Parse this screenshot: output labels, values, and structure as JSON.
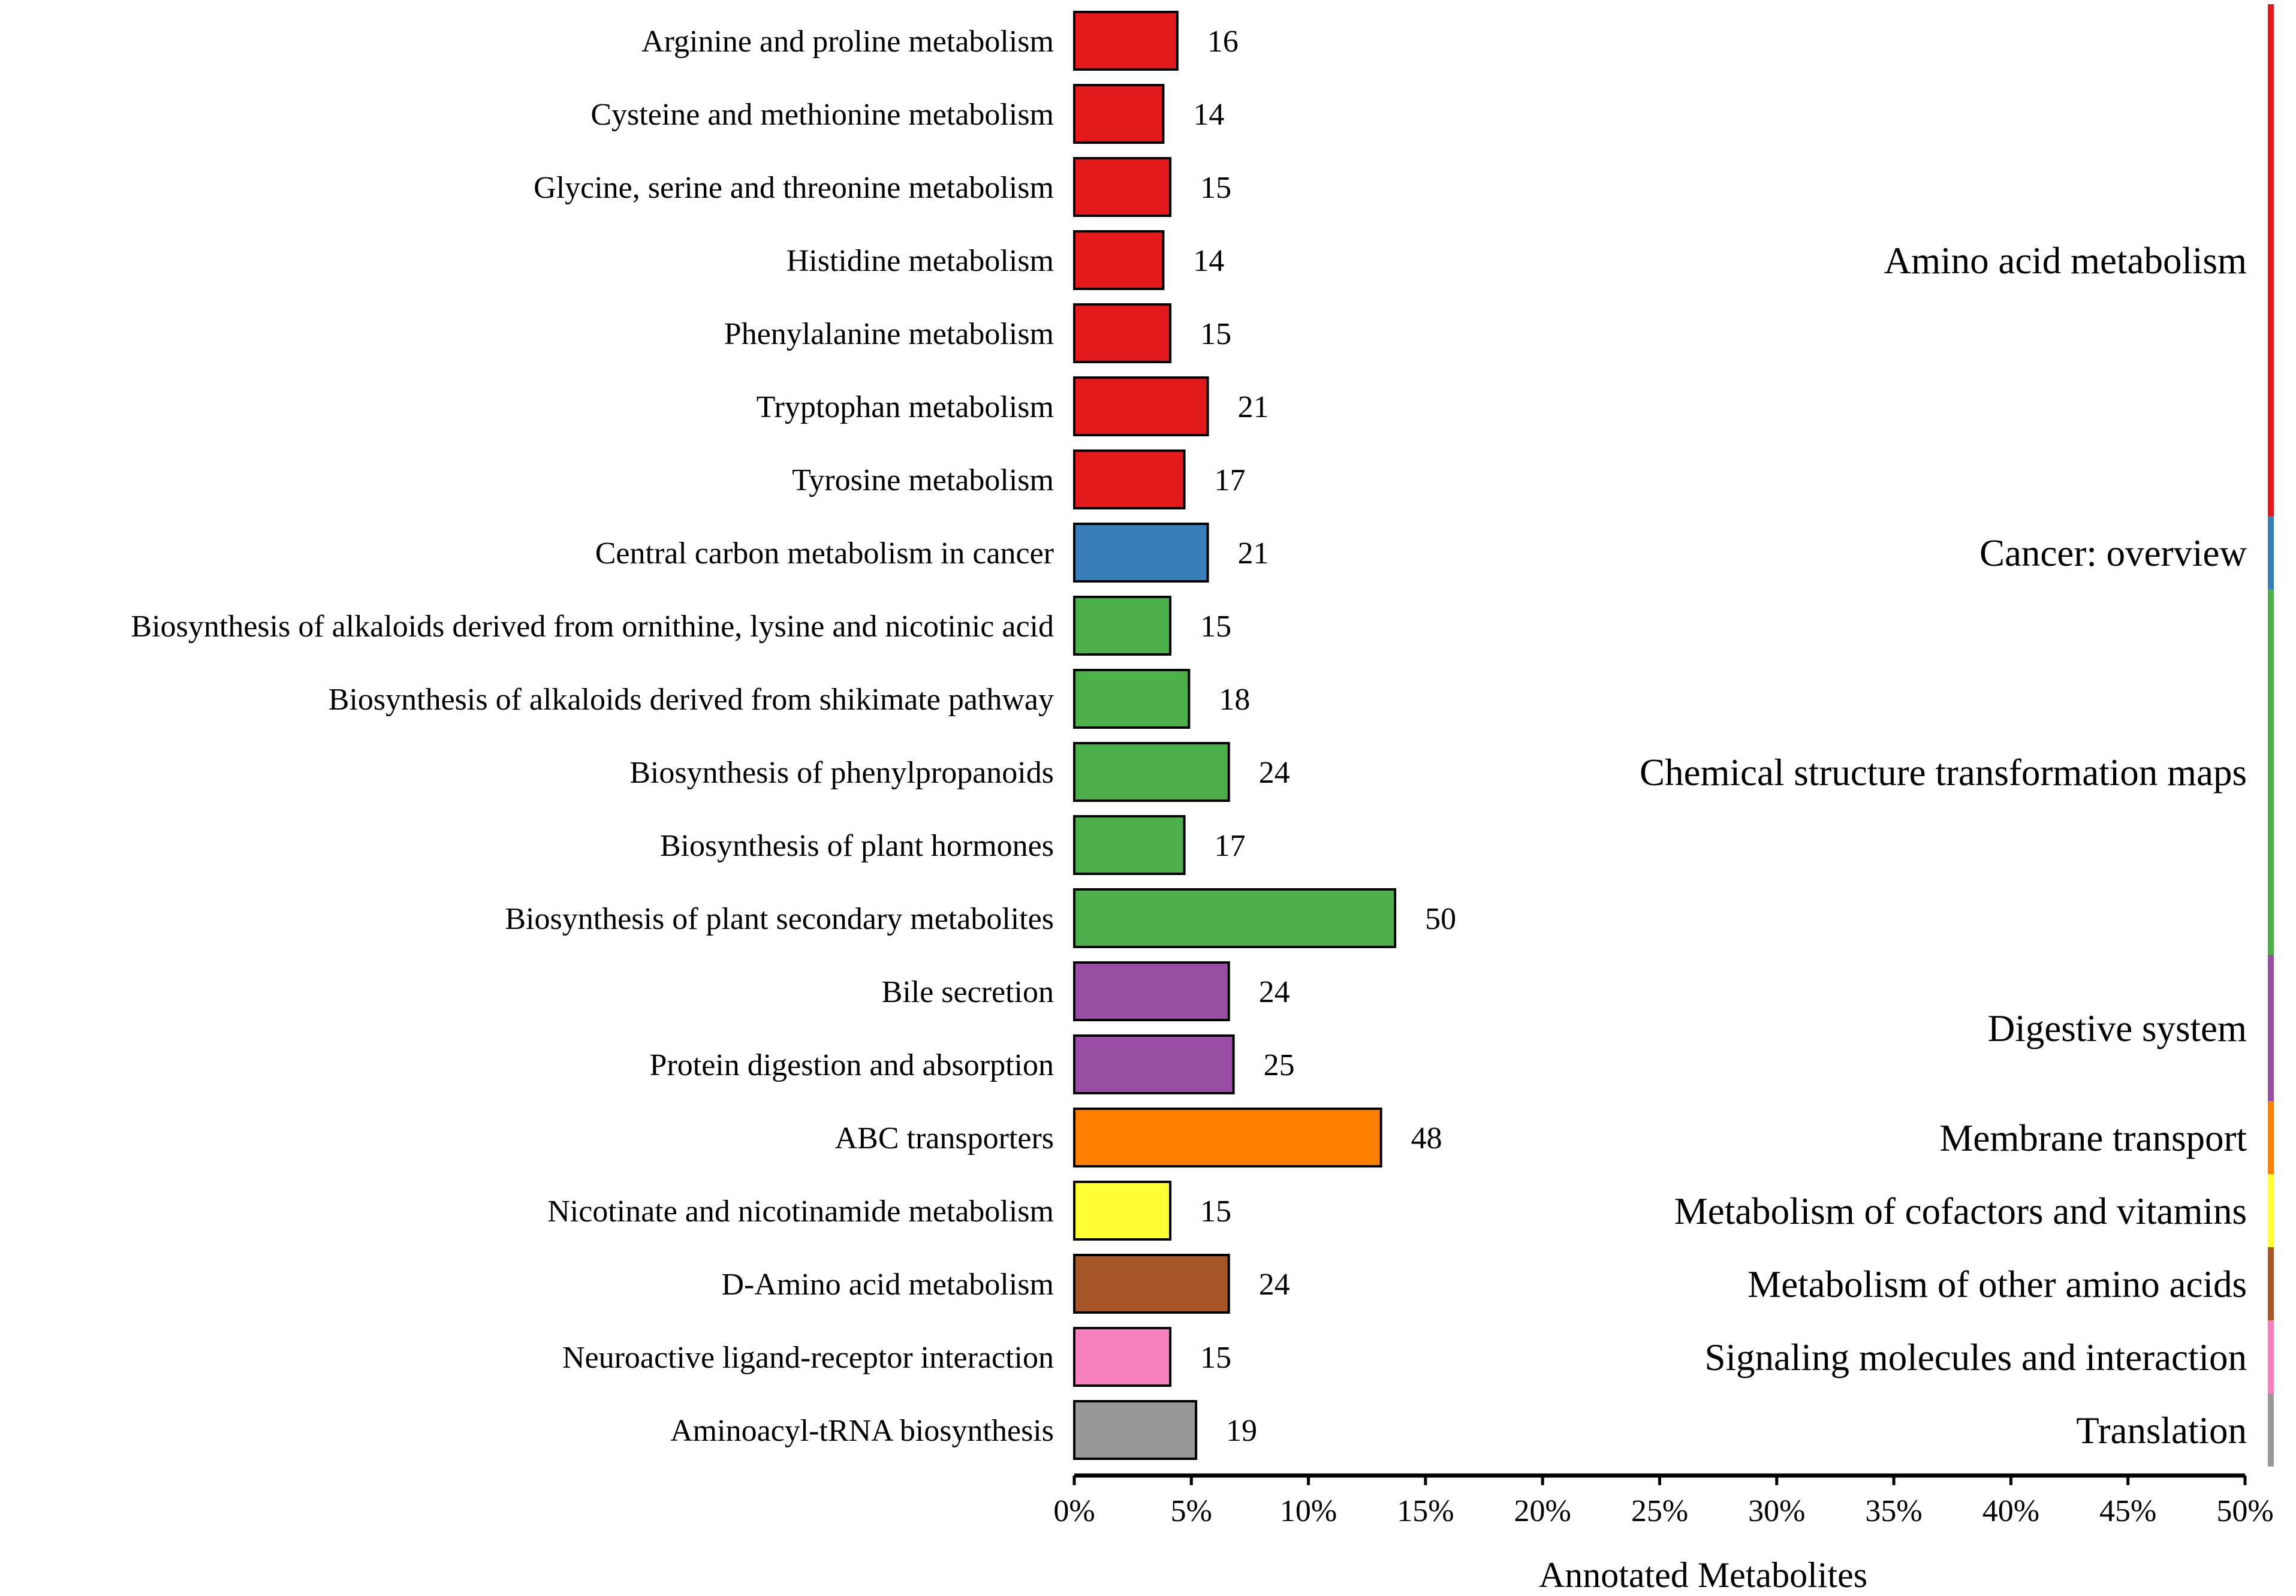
{
  "chart_data": {
    "type": "bar",
    "orientation": "horizontal",
    "xlabel": "Annotated Metabolites",
    "xlim": [
      0,
      50
    ],
    "xticks": [
      "0%",
      "5%",
      "10%",
      "15%",
      "20%",
      "25%",
      "30%",
      "35%",
      "40%",
      "45%",
      "50%"
    ],
    "value_unit": "percent of annotated metabolites (approx.)",
    "bars": [
      {
        "label": "Arginine and proline metabolism",
        "count": "16",
        "value": 4.4,
        "category": "Amino acid metabolism"
      },
      {
        "label": "Cysteine and methionine metabolism",
        "count": "14",
        "value": 3.8,
        "category": "Amino acid metabolism"
      },
      {
        "label": "Glycine, serine and threonine metabolism",
        "count": "15",
        "value": 4.1,
        "category": "Amino acid metabolism"
      },
      {
        "label": "Histidine metabolism",
        "count": "14",
        "value": 3.8,
        "category": "Amino acid metabolism"
      },
      {
        "label": "Phenylalanine metabolism",
        "count": "15",
        "value": 4.1,
        "category": "Amino acid metabolism"
      },
      {
        "label": "Tryptophan metabolism",
        "count": "21",
        "value": 5.7,
        "category": "Amino acid metabolism"
      },
      {
        "label": "Tyrosine metabolism",
        "count": "17",
        "value": 4.7,
        "category": "Amino acid metabolism"
      },
      {
        "label": "Central carbon metabolism in cancer",
        "count": "21",
        "value": 5.7,
        "category": "Cancer: overview"
      },
      {
        "label": "Biosynthesis of alkaloids derived from ornithine, lysine and nicotinic acid",
        "count": "15",
        "value": 4.1,
        "category": "Chemical structure transformation maps"
      },
      {
        "label": "Biosynthesis of alkaloids derived from shikimate pathway",
        "count": "18",
        "value": 4.9,
        "category": "Chemical structure transformation maps"
      },
      {
        "label": "Biosynthesis of phenylpropanoids",
        "count": "24",
        "value": 6.6,
        "category": "Chemical structure transformation maps"
      },
      {
        "label": "Biosynthesis of plant hormones",
        "count": "17",
        "value": 4.7,
        "category": "Chemical structure transformation maps"
      },
      {
        "label": "Biosynthesis of plant secondary metabolites",
        "count": "50",
        "value": 13.7,
        "category": "Chemical structure transformation maps"
      },
      {
        "label": "Bile secretion",
        "count": "24",
        "value": 6.6,
        "category": "Digestive system"
      },
      {
        "label": "Protein digestion and absorption",
        "count": "25",
        "value": 6.8,
        "category": "Digestive system"
      },
      {
        "label": "ABC transporters",
        "count": "48",
        "value": 13.1,
        "category": "Membrane transport"
      },
      {
        "label": "Nicotinate and nicotinamide metabolism",
        "count": "15",
        "value": 4.1,
        "category": "Metabolism of cofactors and vitamins"
      },
      {
        "label": "D-Amino acid metabolism",
        "count": "24",
        "value": 6.6,
        "category": "Metabolism of other amino acids"
      },
      {
        "label": "Neuroactive ligand-receptor interaction",
        "count": "15",
        "value": 4.1,
        "category": "Signaling molecules and interaction"
      },
      {
        "label": "Aminoacyl-tRNA biosynthesis",
        "count": "19",
        "value": 5.2,
        "category": "Translation"
      }
    ],
    "categories": [
      {
        "name": "Amino acid metabolism",
        "color": "#e31a1c"
      },
      {
        "name": "Cancer: overview",
        "color": "#377eb8"
      },
      {
        "name": "Chemical structure transformation maps",
        "color": "#4daf4a"
      },
      {
        "name": "Digestive system",
        "color": "#984ea3"
      },
      {
        "name": "Membrane transport",
        "color": "#ff7f00"
      },
      {
        "name": "Metabolism of cofactors and vitamins",
        "color": "#ffff33"
      },
      {
        "name": "Metabolism of other amino acids",
        "color": "#a65628"
      },
      {
        "name": "Signaling molecules and interaction",
        "color": "#f781bf"
      },
      {
        "name": "Translation",
        "color": "#999999"
      }
    ]
  }
}
